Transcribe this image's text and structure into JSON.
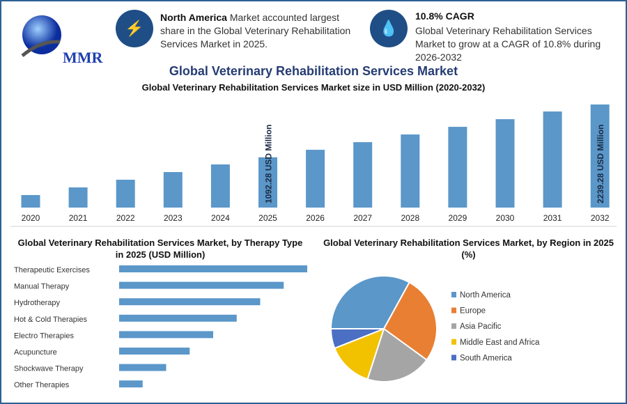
{
  "logo": {
    "text": "MMR"
  },
  "highlights": [
    {
      "icon": "lightning-icon",
      "bold": "North America",
      "text": " Market accounted largest share in the Global Veterinary Rehabilitation Services Market in 2025."
    },
    {
      "icon": "growth-icon",
      "bold": "10.8% CAGR",
      "text": "Global Veterinary Rehabilitation Services Market to grow at a CAGR of 10.8% during 2026-2032"
    }
  ],
  "title": "Global Veterinary Rehabilitation Services Market",
  "chart_data": [
    {
      "type": "bar",
      "title": "Global Veterinary Rehabilitation Services Market size in USD Million (2020-2032)",
      "categories": [
        "2020",
        "2021",
        "2022",
        "2023",
        "2024",
        "2025",
        "2026",
        "2027",
        "2028",
        "2029",
        "2030",
        "2031",
        "2032"
      ],
      "values": [
        272,
        438,
        605,
        771,
        937,
        1092.28,
        1255,
        1421,
        1588,
        1754,
        1920,
        2087,
        2239.28
      ],
      "annotations": [
        {
          "category": "2025",
          "label": "1092.28 USD Million"
        },
        {
          "category": "2032",
          "label": "2239.28 USD Million"
        }
      ],
      "color": "#5b97c9",
      "ylim": [
        0,
        2239.28
      ]
    },
    {
      "type": "bar",
      "orientation": "horizontal",
      "title": "Global Veterinary Rehabilitation Services Market, by Therapy Type in 2025 (USD Million)",
      "categories": [
        "Therapeutic Exercises",
        "Manual Therapy",
        "Hydrotherapy",
        "Hot & Cold Therapies",
        "Electro Therapies",
        "Acupuncture",
        "Shockwave Therapy",
        "Other Therapies"
      ],
      "values": [
        8,
        7,
        6,
        5,
        4,
        3,
        2,
        1
      ],
      "color": "#5b97c9"
    },
    {
      "type": "pie",
      "title": "Global Veterinary Rehabilitation Services Market, by Region in 2025 (%)",
      "labels": [
        "North America",
        "Europe",
        "Asia Pacific",
        "Middle East and Africa",
        "South America"
      ],
      "values": [
        33,
        27,
        20,
        14,
        6
      ],
      "colors": [
        "#5b97c9",
        "#e97f32",
        "#a5a5a5",
        "#f2c100",
        "#4a6fc3"
      ],
      "legend": "right"
    }
  ]
}
